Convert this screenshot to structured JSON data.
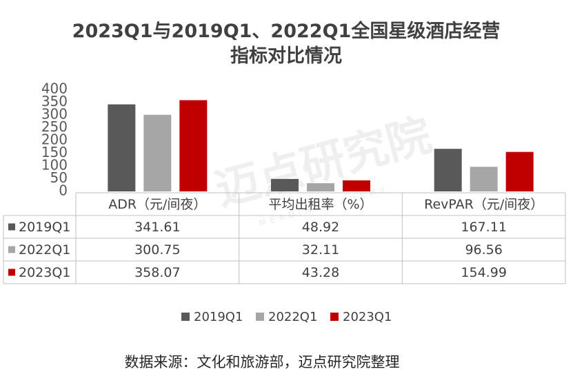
{
  "chart_data": {
    "type": "bar",
    "title": "2023Q1与2019Q1、2022Q1全国星级酒店经营指标对比情况",
    "categories": [
      "ADR（元/间夜）",
      "平均出租率（%）",
      "RevPAR（元/间夜）"
    ],
    "series": [
      {
        "name": "2019Q1",
        "color": "#595959",
        "values": [
          341.61,
          48.92,
          167.11
        ]
      },
      {
        "name": "2022Q1",
        "color": "#a6a6a6",
        "values": [
          300.75,
          32.11,
          96.56
        ]
      },
      {
        "name": "2023Q1",
        "color": "#c00000",
        "values": [
          358.07,
          43.28,
          154.99
        ]
      }
    ],
    "ylim": [
      0,
      400
    ],
    "yticks": [
      0,
      50,
      100,
      150,
      200,
      250,
      300,
      350,
      400
    ],
    "grid": false,
    "legend": "bottom",
    "watermark": "迈点研究院",
    "watermark_sub": "MEADIN ACADEMY",
    "source": "数据来源：文化和旅游部，迈点研究院整理"
  }
}
